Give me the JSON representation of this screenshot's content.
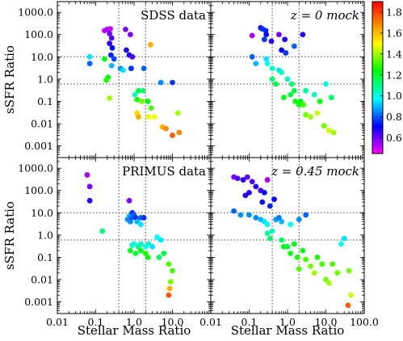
{
  "chart_data": {
    "type": "scatter",
    "xscale": "log",
    "yscale": "log",
    "xlim": [
      0.01,
      100.0
    ],
    "ylim": [
      0.0003,
      3000.0
    ],
    "x_tick_labels": [
      "0.01",
      "0.1",
      "1.0",
      "10.0",
      "100.0"
    ],
    "y_tick_labels": [
      "0.001",
      "0.01",
      "0.1",
      "1.0",
      "10.0",
      "100.0",
      "1000.0"
    ],
    "xlabel": "Stellar Mass Ratio",
    "ylabel": "sSFR Ratio",
    "reference_lines": {
      "x": [
        0.4,
        2.0
      ],
      "y": [
        0.6,
        10.0
      ]
    },
    "colorbar": {
      "min": 0.45,
      "max": 1.9,
      "colormap": "gist_rainbow_r",
      "tick_labels": [
        "0.6",
        "0.8",
        "1.0",
        "1.2",
        "1.4",
        "1.6",
        "1.8"
      ]
    },
    "panels": [
      {
        "label": "SDSS data",
        "italic_label": false,
        "points": [
          {
            "x": 0.17,
            "y": 150,
            "c": 0.5
          },
          {
            "x": 0.2,
            "y": 170,
            "c": 0.55
          },
          {
            "x": 0.24,
            "y": 180,
            "c": 0.5
          },
          {
            "x": 0.23,
            "y": 110,
            "c": 0.6
          },
          {
            "x": 0.26,
            "y": 70,
            "c": 0.65
          },
          {
            "x": 0.23,
            "y": 40,
            "c": 0.7
          },
          {
            "x": 0.27,
            "y": 25,
            "c": 0.75
          },
          {
            "x": 0.25,
            "y": 12,
            "c": 0.78
          },
          {
            "x": 0.3,
            "y": 8,
            "c": 0.82
          },
          {
            "x": 0.6,
            "y": 170,
            "c": 0.6
          },
          {
            "x": 0.8,
            "y": 100,
            "c": 0.6
          },
          {
            "x": 0.63,
            "y": 20,
            "c": 0.7
          },
          {
            "x": 0.75,
            "y": 12,
            "c": 0.72
          },
          {
            "x": 0.9,
            "y": 10,
            "c": 0.65
          },
          {
            "x": 2.7,
            "y": 35,
            "c": 1.7
          },
          {
            "x": 0.07,
            "y": 10,
            "c": 1.0
          },
          {
            "x": 0.07,
            "y": 5,
            "c": 0.85
          },
          {
            "x": 0.17,
            "y": 8,
            "c": 1.3
          },
          {
            "x": 0.26,
            "y": 4,
            "c": 0.95
          },
          {
            "x": 0.44,
            "y": 3,
            "c": 0.9
          },
          {
            "x": 0.52,
            "y": 2.5,
            "c": 1.0
          },
          {
            "x": 0.84,
            "y": 3,
            "c": 0.8
          },
          {
            "x": 1.8,
            "y": 3,
            "c": 0.85
          },
          {
            "x": 0.21,
            "y": 1.2,
            "c": 1.3
          },
          {
            "x": 0.19,
            "y": 0.9,
            "c": 1.35
          },
          {
            "x": 1.3,
            "y": 0.3,
            "c": 1.25
          },
          {
            "x": 1.7,
            "y": 0.3,
            "c": 1.2
          },
          {
            "x": 1.05,
            "y": 0.2,
            "c": 1.1
          },
          {
            "x": 5.0,
            "y": 0.7,
            "c": 0.9
          },
          {
            "x": 10.0,
            "y": 0.7,
            "c": 0.8
          },
          {
            "x": 1.2,
            "y": 0.12,
            "c": 1.35
          },
          {
            "x": 1.6,
            "y": 0.1,
            "c": 1.45
          },
          {
            "x": 2.3,
            "y": 0.1,
            "c": 1.3
          },
          {
            "x": 2.8,
            "y": 0.05,
            "c": 1.4
          },
          {
            "x": 1.2,
            "y": 0.03,
            "c": 1.65
          },
          {
            "x": 1.3,
            "y": 0.02,
            "c": 1.7
          },
          {
            "x": 2.4,
            "y": 0.02,
            "c": 1.6
          },
          {
            "x": 3.4,
            "y": 0.02,
            "c": 1.6
          },
          {
            "x": 5.5,
            "y": 0.007,
            "c": 1.7
          },
          {
            "x": 6.8,
            "y": 0.006,
            "c": 1.75
          },
          {
            "x": 10.0,
            "y": 0.003,
            "c": 1.8
          },
          {
            "x": 15.0,
            "y": 0.004,
            "c": 1.75
          },
          {
            "x": 14.0,
            "y": 0.03,
            "c": 1.5
          },
          {
            "x": 0.23,
            "y": 0.14,
            "c": 1.5
          }
        ]
      },
      {
        "label": "z = 0 mock",
        "italic_label": true,
        "points": [
          {
            "x": 0.12,
            "y": 90,
            "c": 0.55
          },
          {
            "x": 0.2,
            "y": 200,
            "c": 0.75
          },
          {
            "x": 0.22,
            "y": 180,
            "c": 0.8
          },
          {
            "x": 0.27,
            "y": 150,
            "c": 0.78
          },
          {
            "x": 0.28,
            "y": 100,
            "c": 0.72
          },
          {
            "x": 0.25,
            "y": 60,
            "c": 0.8
          },
          {
            "x": 0.38,
            "y": 50,
            "c": 0.7
          },
          {
            "x": 0.6,
            "y": 100,
            "c": 0.6
          },
          {
            "x": 0.85,
            "y": 60,
            "c": 0.7
          },
          {
            "x": 0.7,
            "y": 20,
            "c": 0.75
          },
          {
            "x": 0.9,
            "y": 15,
            "c": 0.8
          },
          {
            "x": 1.5,
            "y": 30,
            "c": 0.85
          },
          {
            "x": 2.5,
            "y": 100,
            "c": 0.7
          },
          {
            "x": 0.12,
            "y": 10,
            "c": 0.85
          },
          {
            "x": 0.15,
            "y": 5,
            "c": 0.95
          },
          {
            "x": 0.28,
            "y": 8,
            "c": 1.0
          },
          {
            "x": 0.3,
            "y": 5,
            "c": 1.05
          },
          {
            "x": 0.4,
            "y": 3,
            "c": 1.1
          },
          {
            "x": 0.6,
            "y": 2.5,
            "c": 1.0
          },
          {
            "x": 0.7,
            "y": 2,
            "c": 1.1
          },
          {
            "x": 0.4,
            "y": 1,
            "c": 1.2
          },
          {
            "x": 0.5,
            "y": 0.6,
            "c": 1.25
          },
          {
            "x": 1.0,
            "y": 1,
            "c": 1.1
          },
          {
            "x": 1.3,
            "y": 0.6,
            "c": 1.2
          },
          {
            "x": 1.5,
            "y": 0.3,
            "c": 1.25
          },
          {
            "x": 1.6,
            "y": 0.1,
            "c": 1.3
          },
          {
            "x": 2.0,
            "y": 0.07,
            "c": 1.35
          },
          {
            "x": 2.2,
            "y": 0.1,
            "c": 1.3
          },
          {
            "x": 2.6,
            "y": 0.07,
            "c": 1.4
          },
          {
            "x": 3.0,
            "y": 0.025,
            "c": 1.45
          },
          {
            "x": 4.0,
            "y": 0.02,
            "c": 1.5
          },
          {
            "x": 6.0,
            "y": 0.03,
            "c": 1.55
          },
          {
            "x": 9.0,
            "y": 0.008,
            "c": 1.45
          },
          {
            "x": 12.0,
            "y": 0.005,
            "c": 1.55
          },
          {
            "x": 16.0,
            "y": 0.004,
            "c": 1.5
          },
          {
            "x": 10.0,
            "y": 0.6,
            "c": 1.05
          },
          {
            "x": 14.0,
            "y": 0.15,
            "c": 1.2
          },
          {
            "x": 5.0,
            "y": 0.2,
            "c": 1.1
          },
          {
            "x": 3.0,
            "y": 0.3,
            "c": 1.15
          },
          {
            "x": 0.8,
            "y": 0.15,
            "c": 1.3
          },
          {
            "x": 1.2,
            "y": 0.2,
            "c": 1.25
          },
          {
            "x": 7.0,
            "y": 0.1,
            "c": 1.3
          }
        ]
      },
      {
        "label": "PRIMUS data",
        "italic_label": false,
        "points": [
          {
            "x": 0.06,
            "y": 500,
            "c": 0.55
          },
          {
            "x": 0.07,
            "y": 150,
            "c": 0.6
          },
          {
            "x": 0.07,
            "y": 35,
            "c": 0.7
          },
          {
            "x": 0.15,
            "y": 1.5,
            "c": 1.2
          },
          {
            "x": 0.75,
            "y": 35,
            "c": 0.6
          },
          {
            "x": 0.68,
            "y": 5,
            "c": 0.9
          },
          {
            "x": 0.75,
            "y": 7,
            "c": 0.95
          },
          {
            "x": 0.8,
            "y": 4,
            "c": 0.9
          },
          {
            "x": 0.85,
            "y": 6,
            "c": 0.85
          },
          {
            "x": 0.9,
            "y": 10,
            "c": 0.8
          },
          {
            "x": 1.0,
            "y": 8,
            "c": 0.85
          },
          {
            "x": 1.1,
            "y": 6,
            "c": 0.8
          },
          {
            "x": 1.2,
            "y": 4,
            "c": 0.95
          },
          {
            "x": 1.5,
            "y": 6,
            "c": 0.85
          },
          {
            "x": 1.8,
            "y": 6,
            "c": 0.8
          },
          {
            "x": 1.5,
            "y": 3,
            "c": 1.0
          },
          {
            "x": 0.9,
            "y": 0.35,
            "c": 1.1
          },
          {
            "x": 1.0,
            "y": 0.4,
            "c": 1.05
          },
          {
            "x": 1.3,
            "y": 0.3,
            "c": 1.15
          },
          {
            "x": 1.5,
            "y": 0.4,
            "c": 1.1
          },
          {
            "x": 2.0,
            "y": 0.3,
            "c": 1.05
          },
          {
            "x": 2.4,
            "y": 0.4,
            "c": 1.1
          },
          {
            "x": 3.0,
            "y": 0.3,
            "c": 1.0
          },
          {
            "x": 0.8,
            "y": 0.2,
            "c": 1.3
          },
          {
            "x": 1.1,
            "y": 0.15,
            "c": 1.25
          },
          {
            "x": 1.5,
            "y": 0.2,
            "c": 1.3
          },
          {
            "x": 2.0,
            "y": 0.15,
            "c": 1.35
          },
          {
            "x": 2.3,
            "y": 0.1,
            "c": 1.3
          },
          {
            "x": 4.0,
            "y": 0.8,
            "c": 1.05
          },
          {
            "x": 5.0,
            "y": 0.6,
            "c": 1.0
          },
          {
            "x": 4.5,
            "y": 0.1,
            "c": 1.2
          },
          {
            "x": 6.0,
            "y": 0.15,
            "c": 1.25
          },
          {
            "x": 8.0,
            "y": 0.05,
            "c": 1.4
          },
          {
            "x": 9.0,
            "y": 0.008,
            "c": 1.45
          },
          {
            "x": 8.5,
            "y": 0.004,
            "c": 1.7
          },
          {
            "x": 8.0,
            "y": 0.002,
            "c": 1.8
          },
          {
            "x": 10.0,
            "y": 0.025,
            "c": 1.4
          }
        ]
      },
      {
        "label": "z = 0.45 mock",
        "italic_label": true,
        "points": [
          {
            "x": 0.04,
            "y": 400,
            "c": 0.6
          },
          {
            "x": 0.05,
            "y": 350,
            "c": 0.65
          },
          {
            "x": 0.07,
            "y": 300,
            "c": 0.7
          },
          {
            "x": 0.09,
            "y": 400,
            "c": 0.62
          },
          {
            "x": 0.12,
            "y": 250,
            "c": 0.65
          },
          {
            "x": 0.15,
            "y": 150,
            "c": 0.7
          },
          {
            "x": 0.1,
            "y": 80,
            "c": 0.7
          },
          {
            "x": 0.08,
            "y": 60,
            "c": 0.7
          },
          {
            "x": 0.2,
            "y": 100,
            "c": 0.65
          },
          {
            "x": 0.25,
            "y": 80,
            "c": 0.75
          },
          {
            "x": 0.3,
            "y": 300,
            "c": 0.55
          },
          {
            "x": 0.22,
            "y": 30,
            "c": 0.75
          },
          {
            "x": 0.35,
            "y": 20,
            "c": 0.78
          },
          {
            "x": 0.45,
            "y": 40,
            "c": 0.72
          },
          {
            "x": 0.04,
            "y": 12,
            "c": 0.85
          },
          {
            "x": 0.06,
            "y": 8,
            "c": 0.9
          },
          {
            "x": 0.1,
            "y": 8,
            "c": 0.9
          },
          {
            "x": 0.15,
            "y": 6,
            "c": 0.9
          },
          {
            "x": 0.2,
            "y": 5,
            "c": 0.95
          },
          {
            "x": 0.25,
            "y": 4,
            "c": 1.0
          },
          {
            "x": 0.3,
            "y": 3,
            "c": 1.05
          },
          {
            "x": 0.5,
            "y": 5,
            "c": 0.92
          },
          {
            "x": 0.6,
            "y": 6,
            "c": 0.88
          },
          {
            "x": 0.7,
            "y": 4,
            "c": 0.95
          },
          {
            "x": 1.2,
            "y": 3,
            "c": 1.05
          },
          {
            "x": 2.0,
            "y": 5,
            "c": 0.9
          },
          {
            "x": 3.0,
            "y": 8,
            "c": 0.85
          },
          {
            "x": 0.3,
            "y": 1.2,
            "c": 1.15
          },
          {
            "x": 0.35,
            "y": 0.7,
            "c": 1.2
          },
          {
            "x": 0.4,
            "y": 1.5,
            "c": 1.1
          },
          {
            "x": 1.0,
            "y": 0.3,
            "c": 1.25
          },
          {
            "x": 1.5,
            "y": 0.4,
            "c": 1.3
          },
          {
            "x": 1.2,
            "y": 0.15,
            "c": 1.3
          },
          {
            "x": 1.8,
            "y": 0.1,
            "c": 1.35
          },
          {
            "x": 2.5,
            "y": 0.2,
            "c": 1.3
          },
          {
            "x": 3.0,
            "y": 0.08,
            "c": 1.4
          },
          {
            "x": 2.0,
            "y": 0.03,
            "c": 1.4
          },
          {
            "x": 4.0,
            "y": 0.04,
            "c": 1.45
          },
          {
            "x": 5.0,
            "y": 0.02,
            "c": 1.5
          },
          {
            "x": 6.0,
            "y": 0.1,
            "c": 1.35
          },
          {
            "x": 8.0,
            "y": 0.05,
            "c": 1.4
          },
          {
            "x": 10.0,
            "y": 0.01,
            "c": 1.45
          },
          {
            "x": 12.0,
            "y": 0.007,
            "c": 1.5
          },
          {
            "x": 15.0,
            "y": 0.05,
            "c": 1.4
          },
          {
            "x": 20.0,
            "y": 0.02,
            "c": 1.45
          },
          {
            "x": 25.0,
            "y": 0.4,
            "c": 1.05
          },
          {
            "x": 30.0,
            "y": 0.7,
            "c": 1.0
          },
          {
            "x": 40.0,
            "y": 0.025,
            "c": 1.45
          },
          {
            "x": 45.0,
            "y": 0.002,
            "c": 1.55
          },
          {
            "x": 38.0,
            "y": 0.0007,
            "c": 1.8
          },
          {
            "x": 0.8,
            "y": 0.3,
            "c": 1.3
          },
          {
            "x": 0.7,
            "y": 0.6,
            "c": 1.2
          }
        ]
      }
    ]
  }
}
